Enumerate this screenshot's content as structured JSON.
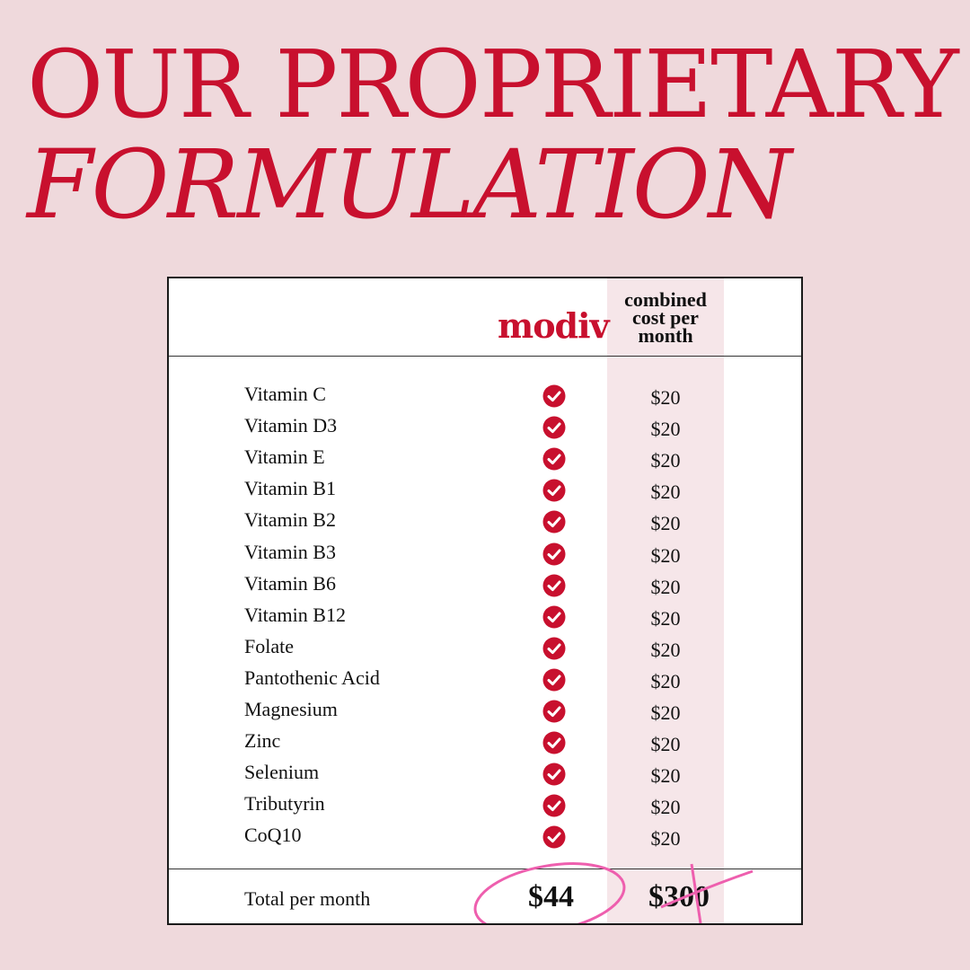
{
  "headline": {
    "line1": "OUR PROPRIETARY",
    "line2": "FORMULATION"
  },
  "table": {
    "brand": "modiv",
    "combined_header": [
      "combined",
      "cost per",
      "month"
    ],
    "rows": [
      {
        "name": "Vitamin C",
        "price": "$20"
      },
      {
        "name": "Vitamin D3",
        "price": "$20"
      },
      {
        "name": "Vitamin E",
        "price": "$20"
      },
      {
        "name": "Vitamin B1",
        "price": "$20"
      },
      {
        "name": "Vitamin B2",
        "price": "$20"
      },
      {
        "name": "Vitamin B3",
        "price": "$20"
      },
      {
        "name": "Vitamin B6",
        "price": "$20"
      },
      {
        "name": "Vitamin B12",
        "price": "$20"
      },
      {
        "name": "Folate",
        "price": "$20"
      },
      {
        "name": "Pantothenic Acid",
        "price": "$20"
      },
      {
        "name": "Magnesium",
        "price": "$20"
      },
      {
        "name": "Zinc",
        "price": "$20"
      },
      {
        "name": "Selenium",
        "price": "$20"
      },
      {
        "name": "Tributyrin",
        "price": "$20"
      },
      {
        "name": "CoQ10",
        "price": "$20"
      }
    ],
    "total_label": "Total per month",
    "total_modiv": "$44",
    "total_combined": "$300"
  },
  "colors": {
    "accent": "#c8102e",
    "background": "#efd9dc",
    "column_shade": "#f6e6e9",
    "scribble": "#ee5fae"
  },
  "icons": {
    "check": "check-circle-icon"
  }
}
